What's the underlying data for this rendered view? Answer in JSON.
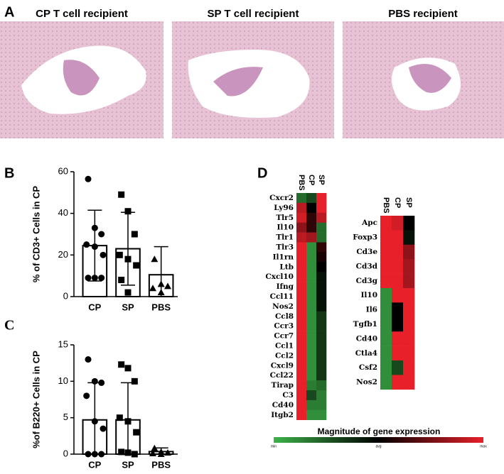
{
  "panel_labels": [
    "A",
    "B",
    "C",
    "D"
  ],
  "images": [
    {
      "title": "CP T cell recipient"
    },
    {
      "title": "SP T cell recipient"
    },
    {
      "title": "PBS recipient"
    }
  ],
  "colorbar": {
    "title": "Magnitude of gene expression",
    "colors": [
      "#3db34a",
      "#000000",
      "#e8202a"
    ],
    "ticks": [
      {
        "value": 0,
        "label": "min"
      },
      {
        "value": 0.5,
        "label": "avg"
      },
      {
        "value": 1,
        "label": "max"
      }
    ]
  },
  "chart_data": [
    {
      "type": "bar",
      "ylabel": "% of CD3+ Cells in CP",
      "categories": [
        "CP",
        "SP",
        "PBS"
      ],
      "values": [
        24.5,
        23,
        10.5
      ],
      "errors": [
        17,
        17.5,
        13.5
      ],
      "points": [
        [
          56.5,
          33,
          30,
          25,
          24,
          20,
          9,
          9,
          9
        ],
        [
          49,
          41,
          30,
          20,
          18,
          15,
          8,
          2
        ],
        [
          18,
          6,
          5,
          4,
          2
        ]
      ],
      "markers": [
        "circle",
        "square",
        "triangle"
      ],
      "color": "#ffffff",
      "ylim": [
        0,
        60
      ],
      "yticks": [
        0,
        20,
        40,
        60
      ]
    },
    {
      "type": "bar",
      "ylabel": "%of B220+ Cells in CP",
      "categories": [
        "CP",
        "SP",
        "PBS"
      ],
      "values": [
        4.7,
        4.7,
        0.35
      ],
      "errors": [
        5.1,
        5.1,
        0.5
      ],
      "points": [
        [
          13,
          10,
          9.8,
          8,
          4.5,
          3.5,
          0,
          0,
          0
        ],
        [
          12.3,
          11.8,
          10,
          5,
          4.5,
          3,
          0.3,
          0.2,
          0
        ],
        [
          0.8,
          0.3,
          0.2,
          0.1,
          0
        ]
      ],
      "markers": [
        "circle",
        "square",
        "triangle"
      ],
      "color": "#ffffff",
      "ylim": [
        0,
        15
      ],
      "yticks": [
        0,
        5,
        10,
        15
      ]
    },
    {
      "type": "heatmap",
      "columns": [
        "PBS",
        "CP",
        "SP"
      ],
      "rows": [
        "Cxcr2",
        "Ly96",
        "Tlr5",
        "Il10",
        "Tlr1",
        "Tlr3",
        "Il1rn",
        "Ltb",
        "Cxcl10",
        "Ifng",
        "Ccl11",
        "Nos2",
        "Ccl8",
        "Ccr3",
        "Ccr7",
        "Ccl1",
        "Ccl2",
        "Cxcl9",
        "Ccl22",
        "Tirap",
        "C3",
        "Cd40",
        "Itgb2"
      ],
      "values": [
        [
          0.2,
          0.3,
          1
        ],
        [
          0.9,
          0.5,
          1
        ],
        [
          0.95,
          0.6,
          0.9
        ],
        [
          0.8,
          0.6,
          0.2
        ],
        [
          0.9,
          0.85,
          0.2
        ],
        [
          1,
          0.1,
          0.6
        ],
        [
          1,
          0.1,
          0.55
        ],
        [
          1,
          0.1,
          0.5
        ],
        [
          1,
          0.1,
          0.45
        ],
        [
          1,
          0.1,
          0.45
        ],
        [
          1,
          0.1,
          0.45
        ],
        [
          1,
          0.1,
          0.45
        ],
        [
          1,
          0.1,
          0.35
        ],
        [
          1,
          0.1,
          0.35
        ],
        [
          1,
          0.1,
          0.35
        ],
        [
          1,
          0.1,
          0.35
        ],
        [
          1,
          0.1,
          0.35
        ],
        [
          1,
          0.1,
          0.35
        ],
        [
          1,
          0.1,
          0.35
        ],
        [
          1,
          0.15,
          0.2
        ],
        [
          1,
          0.3,
          0.15
        ],
        [
          1,
          0.15,
          0.15
        ],
        [
          1,
          0.1,
          0.1
        ]
      ]
    },
    {
      "type": "heatmap",
      "columns": [
        "PBS",
        "CP",
        "SP"
      ],
      "rows": [
        "Apc",
        "Foxp3",
        "Cd3e",
        "Cd3d",
        "Cd3g",
        "Il10",
        "Il6",
        "Tgfb1",
        "Cd40",
        "Ctla4",
        "Csf2",
        "Nos2"
      ],
      "values": [
        [
          1,
          0.95,
          0.5
        ],
        [
          1,
          1,
          0.45
        ],
        [
          1,
          1,
          0.8
        ],
        [
          1,
          1,
          0.85
        ],
        [
          1,
          1,
          0.85
        ],
        [
          0.1,
          1,
          1
        ],
        [
          0.1,
          0.5,
          1
        ],
        [
          0.1,
          0.5,
          1
        ],
        [
          0.1,
          1,
          1
        ],
        [
          0.1,
          1,
          1
        ],
        [
          0.1,
          0.3,
          1
        ],
        [
          0.1,
          1,
          1
        ]
      ]
    }
  ]
}
